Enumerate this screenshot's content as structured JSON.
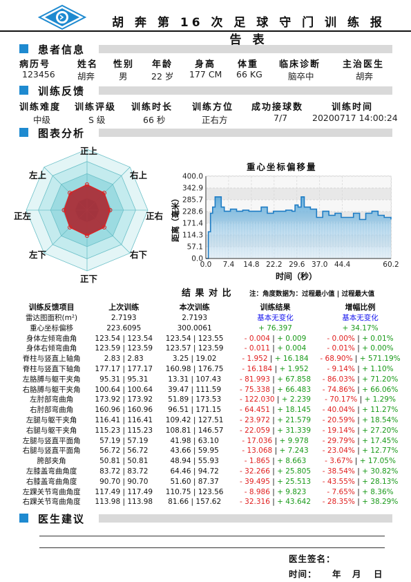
{
  "report_title": "胡 奔 第 16 次 足 球 守 门 训 练 报 告 表",
  "patient_section": {
    "title": "患者信息",
    "headers": [
      "病历号",
      "姓名",
      "性别",
      "年龄",
      "身高",
      "体重",
      "临床诊断",
      "主治医生"
    ],
    "values": [
      "123456",
      "胡奔",
      "男",
      "22 岁",
      "177 CM",
      "66 KG",
      "脑卒中",
      "胡奔"
    ]
  },
  "training_section": {
    "title": "训练反馈",
    "headers": [
      "训练难度",
      "训练评级",
      "训练时长",
      "训练方位",
      "成功接球数",
      "训练时间"
    ],
    "values": [
      "中级",
      "S 级",
      "66 秒",
      "正右方",
      "7/7",
      "20200717 14:00:24"
    ]
  },
  "chart_section": {
    "title": "图表分析"
  },
  "radar": {
    "labels": [
      "正上",
      "右上",
      "正右",
      "右下",
      "正下",
      "左下",
      "正左",
      "左上"
    ],
    "series_values": [
      0.42,
      0.4,
      0.38,
      0.4,
      0.42,
      0.4,
      0.38,
      0.4
    ],
    "colors": {
      "ring_outer": "#d6f0f2",
      "ring_inner": "#3aa8b4",
      "series": "#c0202a"
    }
  },
  "chart_data": {
    "type": "line",
    "title": "重心坐标偏移量",
    "xlabel": "时间（秒）",
    "ylabel": "距离（毫米）",
    "xlim": [
      0,
      60.2
    ],
    "ylim": [
      0,
      400
    ],
    "xticks": [
      "0.0",
      "7.4",
      "14.8",
      "22.2",
      "29.6",
      "37.0",
      "44.4",
      "60.2"
    ],
    "yticks": [
      "0.0",
      "57.1",
      "114.3",
      "171.4",
      "228.6",
      "285.7",
      "342.9",
      "400.0"
    ],
    "series": [
      {
        "x": [
          0,
          0.8,
          1.5,
          2.2,
          3,
          4,
          5,
          6,
          7,
          8,
          10,
          12,
          14,
          16,
          18,
          20,
          22,
          24,
          26,
          28,
          29,
          30,
          31,
          32,
          34,
          36,
          38,
          40,
          42,
          44,
          46,
          48,
          50,
          52,
          54,
          56,
          58,
          60.2
        ],
        "values": [
          0,
          130,
          220,
          250,
          300,
          300,
          250,
          230,
          230,
          240,
          230,
          235,
          230,
          230,
          250,
          220,
          230,
          230,
          235,
          230,
          260,
          250,
          300,
          250,
          240,
          200,
          230,
          210,
          220,
          200,
          200,
          220,
          190,
          220,
          230,
          210,
          200,
          190
        ]
      }
    ]
  },
  "compare": {
    "title": "结 果 对 比",
    "note": "注：角度数据为：过程最小值 | 过程最大值",
    "headers": [
      "训练反馈项目",
      "上次训练",
      "本次训练",
      "训练结果",
      "增幅比例"
    ],
    "rows": [
      [
        "雷达图面积(m²)",
        "2.7193",
        "2.7193",
        "基本无变化",
        "基本无变化"
      ],
      [
        "重心坐标偏移",
        "223.6095",
        "300.0061",
        "+ 76.397",
        "+ 34.17%"
      ],
      [
        "身体左倾弯曲角",
        "123.54 | 123.54",
        "123.54 | 123.55",
        "- 0.004 | + 0.009",
        "- 0.00% | + 0.01%"
      ],
      [
        "身体右倾弯曲角",
        "123.59 | 123.59",
        "123.57 | 123.59",
        "- 0.011 | + 0.004",
        "- 0.01% | + 0.00%"
      ],
      [
        "脊柱与竖直上轴角",
        "2.83 | 2.83",
        "3.25 | 19.02",
        "- 1.952 | + 16.184",
        "- 68.90% | + 571.19%"
      ],
      [
        "脊柱与竖直下轴角",
        "177.17 | 177.17",
        "160.98 | 176.75",
        "- 16.184 | + 1.952",
        "- 9.14% | + 1.10%"
      ],
      [
        "左胳膊与躯干夹角",
        "95.31 | 95.31",
        "13.31 | 107.43",
        "- 81.993 | + 67.858",
        "- 86.03% | + 71.20%"
      ],
      [
        "右胳膊与躯干夹角",
        "100.64 | 100.64",
        "39.47 | 111.59",
        "- 75.338 | + 66.483",
        "- 74.86% | + 66.06%"
      ],
      [
        "左肘部弯曲角",
        "173.92 | 173.92",
        "51.89 | 173.53",
        "- 122.030 | + 2.239",
        "- 70.17% | + 1.29%"
      ],
      [
        "右肘部弯曲角",
        "160.96 | 160.96",
        "96.51 | 171.15",
        "- 64.451 | + 18.145",
        "- 40.04% | + 11.27%"
      ],
      [
        "左腿与躯干夹角",
        "116.41 | 116.41",
        "109.42 | 127.51",
        "- 23.972 | + 21.579",
        "- 20.59% | + 18.54%"
      ],
      [
        "右腿与躯干夹角",
        "115.23 | 115.23",
        "108.81 | 146.57",
        "- 22.059 | + 31.339",
        "- 19.14% | + 27.20%"
      ],
      [
        "左腿与竖直平面角",
        "57.19 | 57.19",
        "41.98 | 63.10",
        "- 17.036 | + 9.978",
        "- 29.79% | + 17.45%"
      ],
      [
        "右腿与竖直平面角",
        "56.72 | 56.72",
        "43.66 | 59.95",
        "- 13.068 | + 7.243",
        "- 23.04% | + 12.77%"
      ],
      [
        "胯部夹角",
        "50.81 | 50.81",
        "48.94 | 55.93",
        "- 1.865 | + 8.663",
        "- 3.67% | + 17.05%"
      ],
      [
        "左膝盖弯曲角度",
        "83.72 | 83.72",
        "64.46 | 94.72",
        "- 32.266 | + 25.805",
        "- 38.54% | + 30.82%"
      ],
      [
        "右膝盖弯曲角度",
        "90.70 | 90.70",
        "51.60 | 87.37",
        "- 39.495 | + 25.513",
        "- 43.55% | + 28.13%"
      ],
      [
        "左踝关节弯曲角度",
        "117.49 | 117.49",
        "110.75 | 123.56",
        "- 8.986 | + 9.823",
        "- 7.65% | + 8.36%"
      ],
      [
        "右踝关节弯曲角度",
        "113.98 | 113.98",
        "81.66 | 157.62",
        "- 32.316 | + 43.642",
        "- 28.35% | + 38.29%"
      ]
    ]
  },
  "advice_section": {
    "title": "医生建议"
  },
  "signature": {
    "label": "医生签名：",
    "date_label": "时间：",
    "date_units": [
      "年",
      "月",
      "日"
    ]
  },
  "colors": {
    "accent": "#1e8ad0",
    "section_bar": "#d9d9d9",
    "positive": "#1a9a1a",
    "negative": "#e02020",
    "neutral": "#1010ee"
  }
}
